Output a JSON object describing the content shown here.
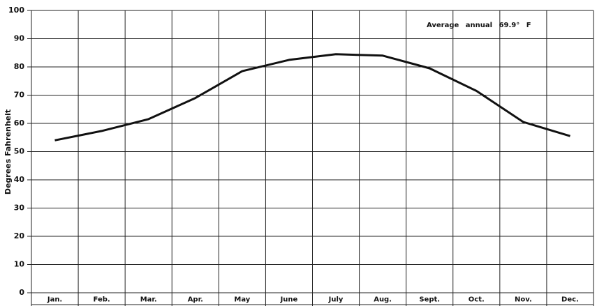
{
  "chart_data": {
    "type": "line",
    "y_label": "Degrees Fahrenheit",
    "annotation": "Average annual 69.9° F",
    "categories": [
      "Jan.",
      "Feb.",
      "Mar.",
      "Apr.",
      "May",
      "June",
      "July",
      "Aug.",
      "Sept.",
      "Oct.",
      "Nov.",
      "Dec."
    ],
    "values": [
      54,
      57.3,
      61.5,
      69,
      78.5,
      82.5,
      84.5,
      84,
      79.5,
      71.5,
      60.5,
      55.5
    ],
    "color": "#111111",
    "ylim": [
      0,
      100
    ],
    "yticks": [
      0,
      10,
      20,
      30,
      40,
      50,
      60,
      70,
      80,
      90,
      100
    ],
    "grid": true
  }
}
